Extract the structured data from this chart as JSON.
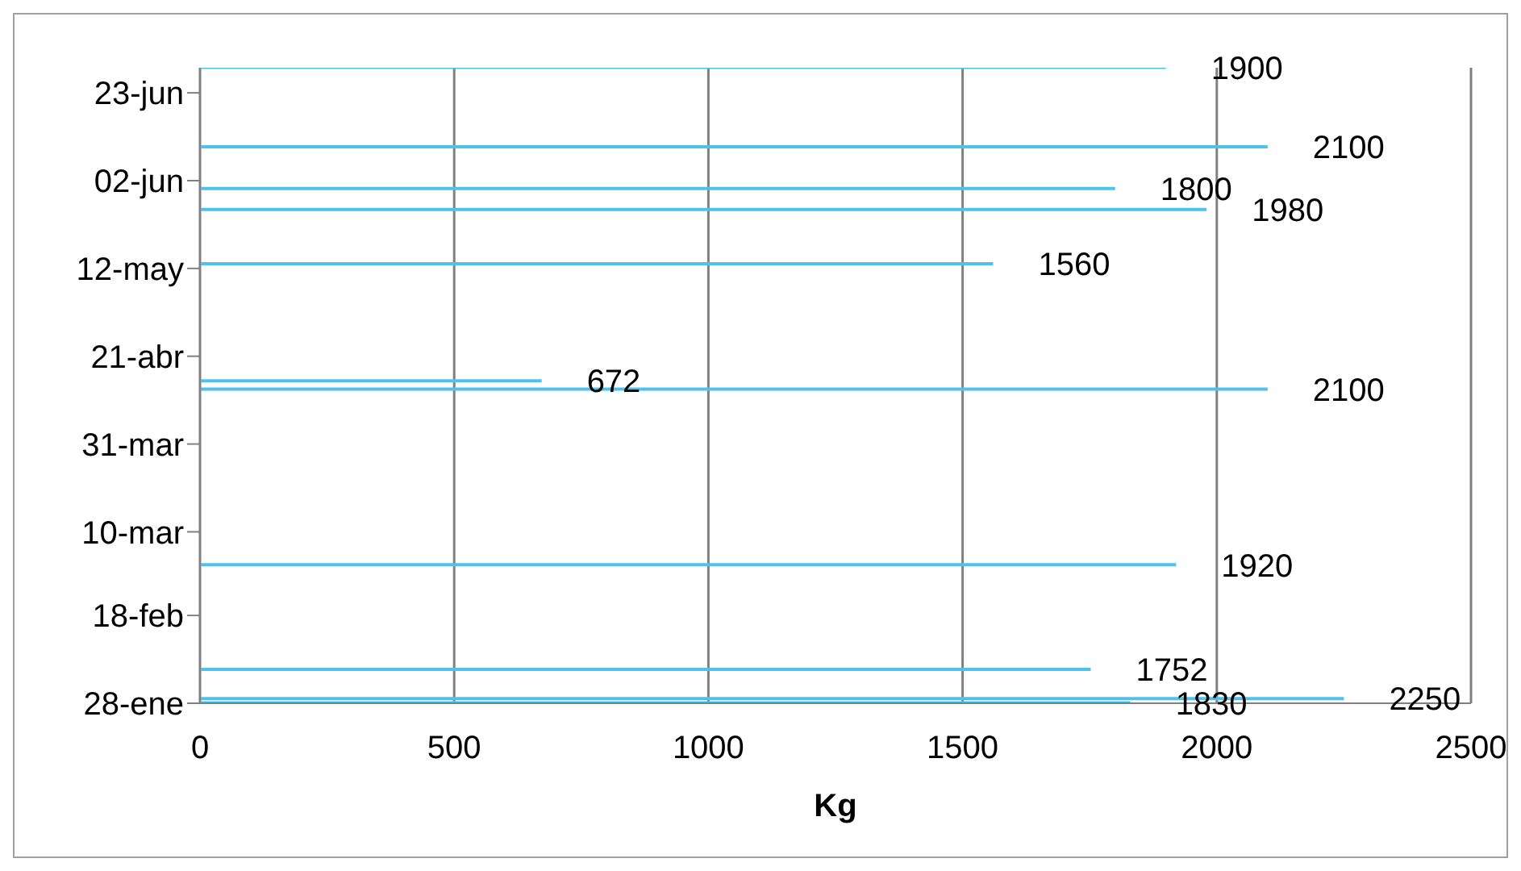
{
  "chart_data": {
    "type": "bar",
    "orientation": "horizontal",
    "xlabel": "Kg",
    "x": [
      "--06-29",
      "--06-10",
      "--05-31",
      "--05-26",
      "--05-13",
      "--04-15",
      "--04-13",
      "--03-02",
      "--02-05",
      "--01-29",
      "--01-28"
    ],
    "values": [
      1900,
      2100,
      1800,
      1980,
      1560,
      672,
      2100,
      1920,
      1752,
      2250,
      1830
    ],
    "color": "#4dc3ec",
    "data_labels": true,
    "xlim": [
      0,
      2500
    ],
    "xticks": [
      0,
      500,
      1000,
      1500,
      2000,
      2500
    ],
    "ylim": [
      "--01-28",
      "--06-29"
    ],
    "yticks": [
      {
        "value": "--01-28",
        "label": "28-ene"
      },
      {
        "value": "--02-18",
        "label": "18-feb"
      },
      {
        "value": "--03-10",
        "label": "10-mar"
      },
      {
        "value": "--03-31",
        "label": "31-mar"
      },
      {
        "value": "--04-21",
        "label": "21-abr"
      },
      {
        "value": "--05-12",
        "label": "12-may"
      },
      {
        "value": "--06-02",
        "label": "02-jun"
      },
      {
        "value": "--06-23",
        "label": "23-jun"
      }
    ],
    "grid": "x"
  }
}
